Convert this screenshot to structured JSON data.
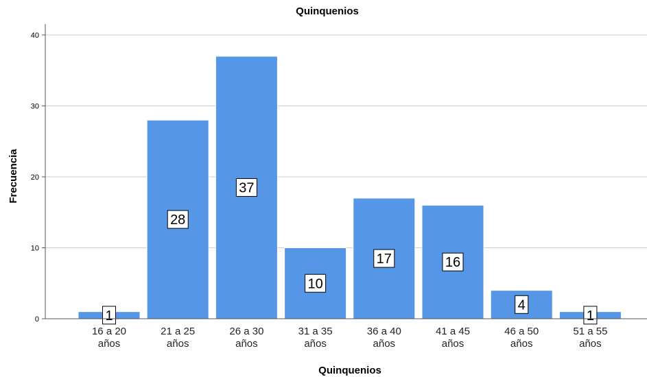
{
  "chart_data": {
    "type": "bar",
    "title": "Quinquenios",
    "xlabel": "Quinquenios",
    "ylabel": "Frecuencia",
    "categories": [
      [
        "16 a 20",
        "años"
      ],
      [
        "21 a 25",
        "años"
      ],
      [
        "26 a 30",
        "años"
      ],
      [
        "31 a 35",
        "años"
      ],
      [
        "36 a 40",
        "años"
      ],
      [
        "41 a 45",
        "años"
      ],
      [
        "46 a 50",
        "años"
      ],
      [
        "51 a 55",
        "años"
      ]
    ],
    "values": [
      1,
      28,
      37,
      10,
      17,
      16,
      4,
      1
    ],
    "ylim": [
      0,
      40
    ],
    "yticks": [
      0,
      10,
      20,
      30,
      40
    ],
    "grid": true,
    "data_labels": true,
    "colors": {
      "bar": "#5596E6",
      "bar_edge": "#ffffff",
      "grid": "#cccccc",
      "axis": "#555555"
    }
  }
}
